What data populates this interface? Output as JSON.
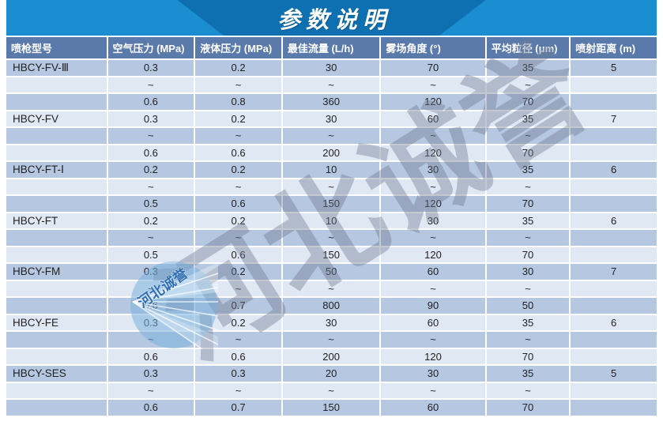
{
  "title": "参数说明",
  "table": {
    "headers": [
      "喷枪型号",
      "空气压力 (MPa)",
      "液体压力 (MPa)",
      "最佳流量 (L/h)",
      "雾场角度 (°)",
      "平均粒径 (μm)",
      "喷射距离 (m)"
    ],
    "rows": [
      [
        "HBCY-FV-Ⅲ",
        "0.3",
        "0.2",
        "30",
        "70",
        "35",
        "5"
      ],
      [
        "",
        "~",
        "~",
        "~",
        "~",
        "~",
        ""
      ],
      [
        "",
        "0.6",
        "0.8",
        "360",
        "120",
        "70",
        ""
      ],
      [
        "HBCY-FV",
        "0.3",
        "0.2",
        "30",
        "60",
        "35",
        "7"
      ],
      [
        "",
        "~",
        "~",
        "~",
        "~",
        "~",
        ""
      ],
      [
        "",
        "0.6",
        "0.6",
        "200",
        "120",
        "70",
        ""
      ],
      [
        "HBCY-FT-Ⅰ",
        "0.2",
        "0.2",
        "10",
        "30",
        "35",
        "6"
      ],
      [
        "",
        "~",
        "~",
        "~",
        "~",
        "~",
        ""
      ],
      [
        "",
        "0.5",
        "0.6",
        "150",
        "120",
        "70",
        ""
      ],
      [
        "HBCY-FT",
        "0.2",
        "0.2",
        "10",
        "30",
        "35",
        "6"
      ],
      [
        "",
        "~",
        "~",
        "~",
        "~",
        "~",
        ""
      ],
      [
        "",
        "0.5",
        "0.6",
        "150",
        "120",
        "70",
        ""
      ],
      [
        "HBCY-FM",
        "0.3",
        "0.2",
        "50",
        "60",
        "30",
        "7"
      ],
      [
        "",
        "~",
        "~",
        "~",
        "~",
        "~",
        ""
      ],
      [
        "",
        "0.6",
        "0.7",
        "800",
        "90",
        "50",
        ""
      ],
      [
        "HBCY-FE",
        "0.3",
        "0.2",
        "30",
        "60",
        "35",
        "6"
      ],
      [
        "",
        "~",
        "~",
        "~",
        "~",
        "~",
        ""
      ],
      [
        "",
        "0.6",
        "0.6",
        "200",
        "120",
        "70",
        ""
      ],
      [
        "HBCY-SES",
        "0.3",
        "0.3",
        "20",
        "30",
        "35",
        "5"
      ],
      [
        "",
        "~",
        "~",
        "~",
        "~",
        "~",
        ""
      ],
      [
        "",
        "0.6",
        "0.7",
        "150",
        "60",
        "70",
        ""
      ]
    ]
  },
  "watermark": {
    "text": "河北诚誉",
    "logo_text": "河北诚誉"
  },
  "colors": {
    "banner": "#1b8dd1",
    "ribbon": "#0e6fb1",
    "header": "#5b7aac",
    "rowdark": "#b5c7e1",
    "rowlight": "#e0e8f4",
    "celltext": "#222222"
  }
}
